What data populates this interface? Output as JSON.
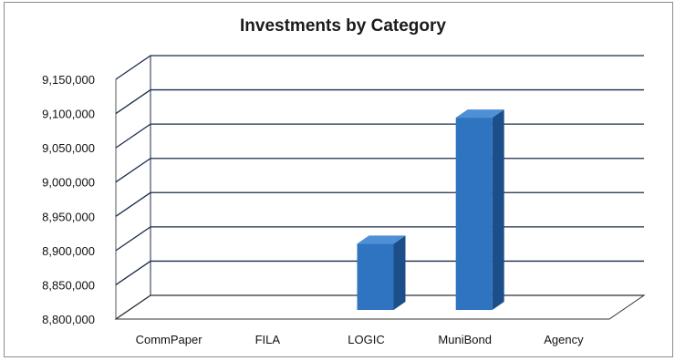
{
  "chart_data": {
    "type": "bar",
    "title": "Investments by Category",
    "categories": [
      "CommPaper",
      "FILA",
      "LOGIC",
      "MuniBond",
      "Agency"
    ],
    "values": [
      null,
      null,
      8918000,
      9102000,
      null
    ],
    "ylim": [
      8800000,
      9150000
    ],
    "yticks": [
      "8,800,000",
      "8,850,000",
      "8,900,000",
      "8,950,000",
      "9,000,000",
      "9,050,000",
      "9,100,000",
      "9,150,000"
    ],
    "ytick_values": [
      8800000,
      8850000,
      8900000,
      8950000,
      9000000,
      9050000,
      9100000,
      9150000
    ],
    "xlabel": "",
    "ylabel": "",
    "grid": true,
    "legend": "none",
    "bar_color": "#2e74c0",
    "bar_side_color": "#1c4f8a",
    "bar_top_color": "#4e8fd6",
    "grid_color": "#1a2b4a"
  }
}
